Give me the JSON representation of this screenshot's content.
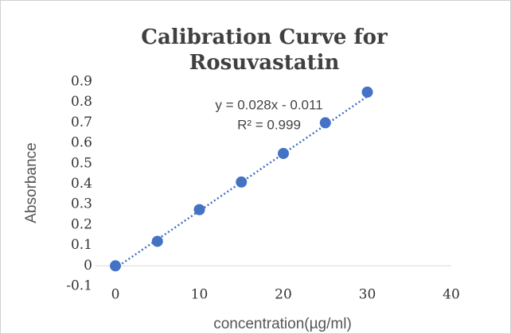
{
  "chart_data": {
    "type": "scatter",
    "title": [
      "Calibration Curve for",
      "Rosuvastatin"
    ],
    "x_label": "concentration(µg/ml)",
    "y_label": "Absorbance",
    "annotations": [
      "y = 0.028x - 0.011",
      "R² = 0.999"
    ],
    "series": [
      {
        "name": "Absorbance",
        "color": "#4472c4",
        "x": [
          0,
          5,
          10,
          15,
          20,
          25,
          30
        ],
        "values": [
          0,
          0.12,
          0.275,
          0.41,
          0.55,
          0.7,
          0.85
        ]
      }
    ],
    "trendline": {
      "slope": 0.028,
      "intercept": -0.011
    },
    "xlim": [
      0,
      40
    ],
    "xticks": [
      0,
      10,
      20,
      30,
      40
    ],
    "ylim": [
      -0.1,
      0.9
    ],
    "yticks": [
      -0.1,
      0,
      0.1,
      0.2,
      0.3,
      0.4,
      0.5,
      0.6,
      0.7,
      0.8,
      0.9
    ]
  }
}
